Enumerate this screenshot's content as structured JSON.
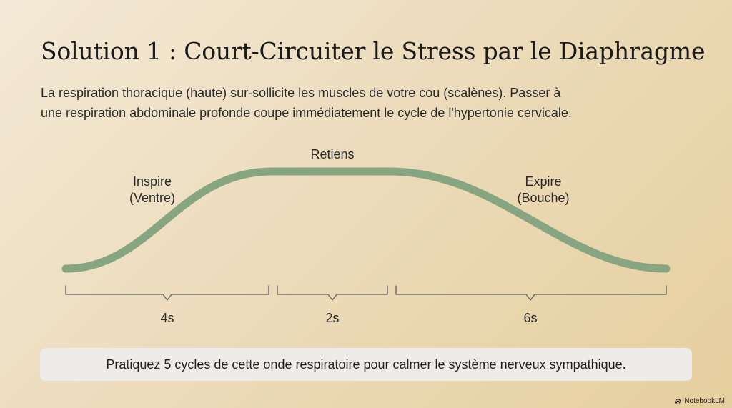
{
  "title": "Solution 1 : Court-Circuiter le Stress par le Diaphragme",
  "description": {
    "line1": "La respiration thoracique (haute) sur-sollicite les muscles de votre cou (scalènes). Passer à",
    "line2": "une respiration abdominale profonde coupe immédiatement le cycle de l'hypertonie cervicale."
  },
  "diagram": {
    "phases": [
      {
        "label_line1": "Inspire",
        "label_line2": "(Ventre)",
        "duration": "4s",
        "seconds": 4
      },
      {
        "label_line1": "Retiens",
        "label_line2": "",
        "duration": "2s",
        "seconds": 2
      },
      {
        "label_line1": "Expire",
        "label_line2": "(Bouche)",
        "duration": "6s",
        "seconds": 6
      }
    ],
    "wave_color": "#88a582"
  },
  "footer": {
    "text": "Pratiquez 5 cycles de cette onde respiratoire pour calmer le système nerveux sympathique."
  },
  "brand": {
    "name": "NotebookLM"
  }
}
